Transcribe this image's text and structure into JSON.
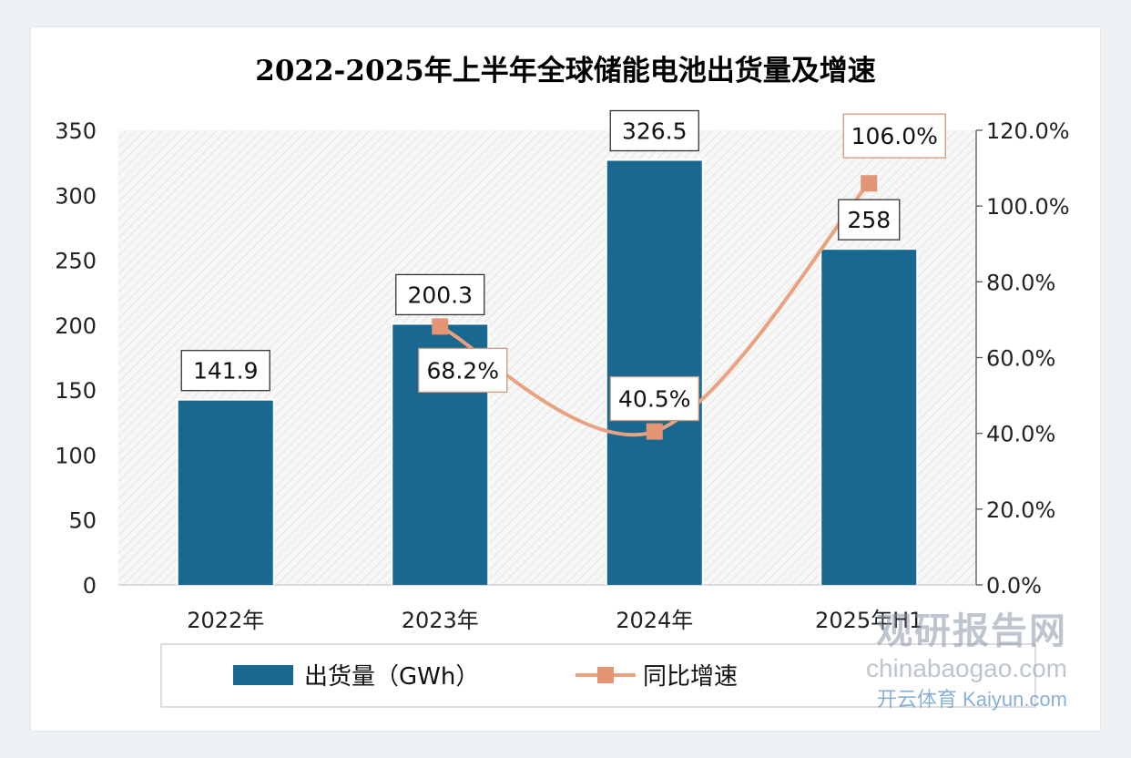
{
  "chart_data": {
    "type": "bar",
    "title": "2022-2025年上半年全球储能电池出货量及增速",
    "categories": [
      "2022年",
      "2023年",
      "2024年",
      "2025年H1"
    ],
    "series": [
      {
        "name": "出货量（GWh）",
        "type": "bar",
        "axis": "left",
        "values": [
          141.9,
          200.3,
          326.5,
          258
        ],
        "labels": [
          "141.9",
          "200.3",
          "326.5",
          "258"
        ]
      },
      {
        "name": "同比增速",
        "type": "line",
        "axis": "right",
        "values": [
          null,
          68.2,
          40.5,
          106.0
        ],
        "labels": [
          "",
          "68.2%",
          "40.5%",
          "106.0%"
        ]
      }
    ],
    "y_left": {
      "min": 0,
      "max": 350,
      "step": 50,
      "ticks": [
        "0",
        "50",
        "100",
        "150",
        "200",
        "250",
        "300",
        "350"
      ]
    },
    "y_right": {
      "min": 0,
      "max": 120,
      "step": 20,
      "ticks": [
        "0.0%",
        "20.0%",
        "40.0%",
        "60.0%",
        "80.0%",
        "100.0%",
        "120.0%"
      ]
    },
    "legend_position": "bottom",
    "grid": false
  },
  "colors": {
    "bar": "#19688f",
    "line": "#e9a27f",
    "marker": "#e49575",
    "title": "#1f5672",
    "axis_text": "#222222",
    "label_border_bar": "#333333",
    "label_border_line": "#c99a80"
  },
  "watermark": {
    "brand": "观研报告网",
    "site": "chinabaogao.com",
    "kaiyun": "开云体育",
    "kaiyun_site": "Kaiyun.com"
  }
}
